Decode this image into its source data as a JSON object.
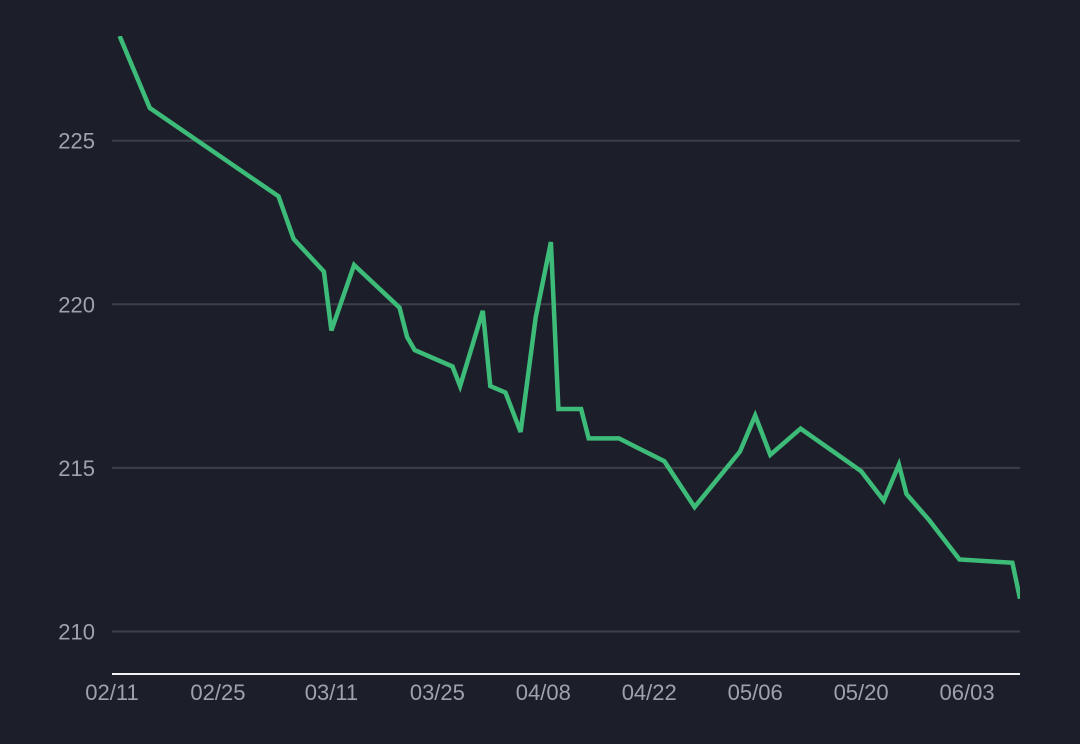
{
  "chart_data": {
    "type": "line",
    "title": "",
    "xlabel": "",
    "ylabel": "",
    "x_ticks": [
      "02/11",
      "02/25",
      "03/11",
      "03/25",
      "04/08",
      "04/22",
      "05/06",
      "05/20",
      "06/03"
    ],
    "y_ticks": [
      210,
      215,
      220,
      225
    ],
    "xlim": [
      "2024-02-11",
      "2024-06-10"
    ],
    "ylim": [
      208.7,
      228.2
    ],
    "grid": true,
    "legend": "none",
    "colors": {
      "background": "#1c1f29",
      "line": "#3dbb78",
      "grid": "#3c3f48",
      "axis": "#f2f2f2",
      "tick_label": "#9ea3ab"
    },
    "series": [
      {
        "points": [
          {
            "x": "2024-02-12",
            "y": 228.2
          },
          {
            "x": "2024-02-16",
            "y": 226.0
          },
          {
            "x": "2024-03-04",
            "y": 223.3
          },
          {
            "x": "2024-03-06",
            "y": 222.0
          },
          {
            "x": "2024-03-10",
            "y": 221.0
          },
          {
            "x": "2024-03-11",
            "y": 219.2
          },
          {
            "x": "2024-03-14",
            "y": 221.2
          },
          {
            "x": "2024-03-20",
            "y": 219.9
          },
          {
            "x": "2024-03-21",
            "y": 219.0
          },
          {
            "x": "2024-03-22",
            "y": 218.6
          },
          {
            "x": "2024-03-27",
            "y": 218.1
          },
          {
            "x": "2024-03-28",
            "y": 217.5
          },
          {
            "x": "2024-03-31",
            "y": 219.8
          },
          {
            "x": "2024-04-01",
            "y": 217.5
          },
          {
            "x": "2024-04-03",
            "y": 217.3
          },
          {
            "x": "2024-04-05",
            "y": 216.1
          },
          {
            "x": "2024-04-07",
            "y": 219.6
          },
          {
            "x": "2024-04-09",
            "y": 221.9
          },
          {
            "x": "2024-04-10",
            "y": 216.8
          },
          {
            "x": "2024-04-13",
            "y": 216.8
          },
          {
            "x": "2024-04-14",
            "y": 215.9
          },
          {
            "x": "2024-04-18",
            "y": 215.9
          },
          {
            "x": "2024-04-24",
            "y": 215.2
          },
          {
            "x": "2024-04-28",
            "y": 213.8
          },
          {
            "x": "2024-05-04",
            "y": 215.5
          },
          {
            "x": "2024-05-06",
            "y": 216.6
          },
          {
            "x": "2024-05-08",
            "y": 215.4
          },
          {
            "x": "2024-05-12",
            "y": 216.2
          },
          {
            "x": "2024-05-20",
            "y": 214.9
          },
          {
            "x": "2024-05-23",
            "y": 214.0
          },
          {
            "x": "2024-05-25",
            "y": 215.1
          },
          {
            "x": "2024-05-26",
            "y": 214.2
          },
          {
            "x": "2024-05-29",
            "y": 213.4
          },
          {
            "x": "2024-06-02",
            "y": 212.2
          },
          {
            "x": "2024-06-09",
            "y": 212.1
          },
          {
            "x": "2024-06-10",
            "y": 211.0
          }
        ]
      }
    ]
  }
}
